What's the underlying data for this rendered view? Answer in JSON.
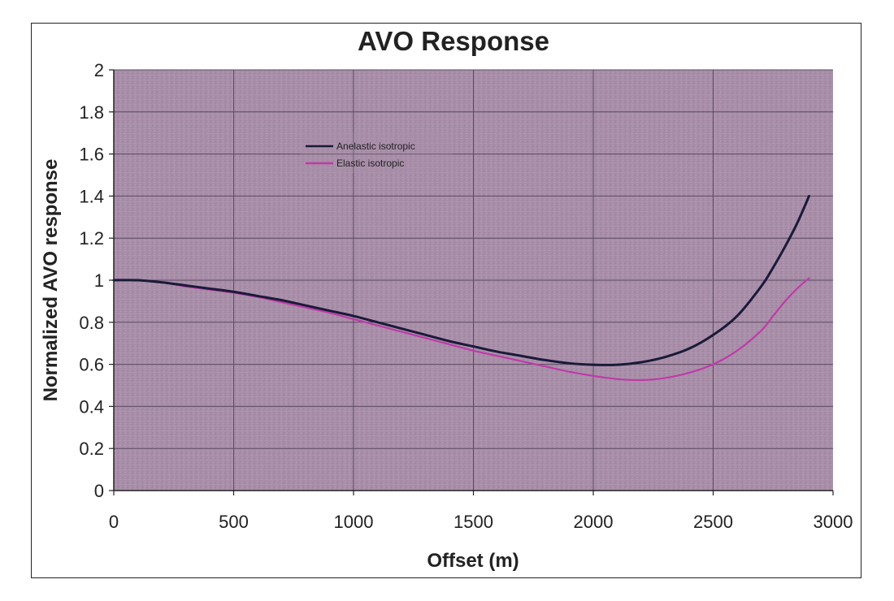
{
  "chart_data": {
    "type": "line",
    "title": "AVO Response",
    "xlabel": "Offset (m)",
    "ylabel": "Normalized AVO response",
    "xlim": [
      0,
      3000
    ],
    "ylim": [
      0,
      2
    ],
    "xticks": [
      0,
      500,
      1000,
      1500,
      2000,
      2500,
      3000
    ],
    "yticks": [
      0,
      0.2,
      0.4,
      0.6,
      0.8,
      1,
      1.2,
      1.4,
      1.6,
      1.8,
      2
    ],
    "xtick_labels": [
      "0",
      "500",
      "1000",
      "1500",
      "2000",
      "2500",
      "3000"
    ],
    "ytick_labels": [
      "0",
      "0.2",
      "0.4",
      "0.6",
      "0.8",
      "1",
      "1.2",
      "1.4",
      "1.6",
      "1.8",
      "2"
    ],
    "grid": true,
    "legend_position": "upper-left",
    "plot_background": "#a88ea8",
    "series": [
      {
        "name": "Anelastic isotropic",
        "color": "#1a1a3a",
        "x": [
          0,
          100,
          200,
          300,
          400,
          500,
          600,
          700,
          800,
          900,
          1000,
          1100,
          1200,
          1300,
          1400,
          1500,
          1600,
          1700,
          1800,
          1900,
          2000,
          2100,
          2200,
          2300,
          2400,
          2500,
          2600,
          2700,
          2750,
          2800,
          2850,
          2900
        ],
        "y": [
          1.0,
          1.0,
          0.99,
          0.975,
          0.96,
          0.945,
          0.925,
          0.905,
          0.88,
          0.855,
          0.83,
          0.8,
          0.77,
          0.74,
          0.71,
          0.685,
          0.66,
          0.64,
          0.62,
          0.605,
          0.598,
          0.598,
          0.61,
          0.635,
          0.675,
          0.74,
          0.83,
          0.97,
          1.06,
          1.16,
          1.27,
          1.4
        ]
      },
      {
        "name": "Elastic isotropic",
        "color": "#c03aa8",
        "x": [
          0,
          100,
          200,
          300,
          400,
          500,
          600,
          700,
          800,
          900,
          1000,
          1100,
          1200,
          1300,
          1400,
          1500,
          1600,
          1700,
          1800,
          1900,
          2000,
          2100,
          2200,
          2300,
          2400,
          2500,
          2600,
          2700,
          2750,
          2800,
          2850,
          2900
        ],
        "y": [
          1.0,
          1.0,
          0.99,
          0.97,
          0.955,
          0.94,
          0.92,
          0.895,
          0.87,
          0.845,
          0.815,
          0.785,
          0.755,
          0.725,
          0.695,
          0.665,
          0.64,
          0.615,
          0.59,
          0.565,
          0.545,
          0.53,
          0.525,
          0.535,
          0.56,
          0.6,
          0.665,
          0.76,
          0.83,
          0.9,
          0.96,
          1.01
        ]
      }
    ]
  }
}
